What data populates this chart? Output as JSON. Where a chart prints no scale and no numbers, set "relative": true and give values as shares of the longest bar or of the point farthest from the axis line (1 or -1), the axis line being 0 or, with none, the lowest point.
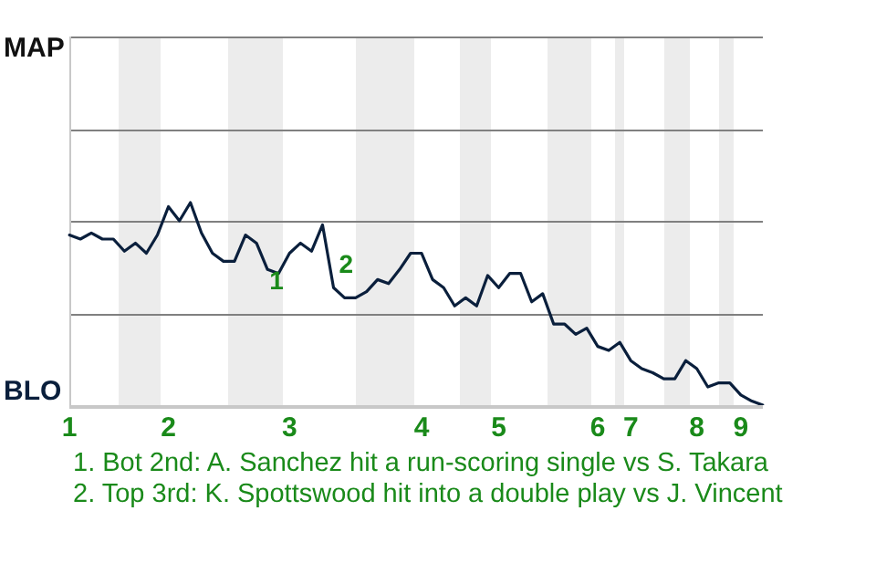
{
  "chart_data": {
    "type": "line",
    "relative": true,
    "categories": [
      "1",
      null,
      null,
      null,
      null,
      null,
      null,
      null,
      null,
      "2",
      null,
      null,
      null,
      null,
      null,
      null,
      null,
      null,
      null,
      null,
      "3",
      null,
      null,
      null,
      null,
      null,
      null,
      null,
      null,
      null,
      null,
      null,
      "4",
      null,
      null,
      null,
      null,
      null,
      null,
      "5",
      null,
      null,
      null,
      null,
      null,
      null,
      null,
      null,
      "6",
      null,
      null,
      "7",
      null,
      null,
      null,
      null,
      null,
      "8",
      null,
      null,
      null,
      "9",
      null,
      null
    ],
    "series": [
      {
        "color": "#0a1f3c",
        "values": [
          0.84,
          0.82,
          0.85,
          0.82,
          0.82,
          0.76,
          0.8,
          0.75,
          0.84,
          0.98,
          0.91,
          1,
          0.85,
          0.75,
          0.71,
          0.71,
          0.84,
          0.8,
          0.67,
          0.65,
          0.75,
          0.8,
          0.76,
          0.89,
          0.58,
          0.53,
          0.53,
          0.56,
          0.62,
          0.6,
          0.67,
          0.75,
          0.75,
          0.62,
          0.58,
          0.49,
          0.53,
          0.49,
          0.64,
          0.58,
          0.65,
          0.65,
          0.51,
          0.55,
          0.4,
          0.4,
          0.35,
          0.38,
          0.29,
          0.27,
          0.31,
          0.22,
          0.18,
          0.16,
          0.13,
          0.13,
          0.22,
          0.18,
          0.09,
          0.11,
          0.11,
          0.05,
          0.02,
          0
        ]
      }
    ],
    "ref_lines": [
      {
        "axis": "y",
        "value": 0.45,
        "color": "#808080"
      },
      {
        "axis": "y",
        "value": 0.91,
        "color": "#808080"
      },
      {
        "axis": "y",
        "value": 1.36,
        "color": "#808080"
      },
      {
        "axis": "y",
        "value": 1.82,
        "color": "#808080"
      }
    ],
    "legend": false,
    "marker": "none",
    "line_style": "solid",
    "annotations": [
      {
        "text": "1",
        "y": 0.65
      },
      {
        "text": "2",
        "y": 0.58
      },
      "MAP",
      "BLO",
      "1. Bot 2nd: A. Sanchez hit a run-scoring single vs S. Takara",
      "2. Top 3rd: K. Spottswood hit into a double play vs J. Vincent"
    ]
  }
}
